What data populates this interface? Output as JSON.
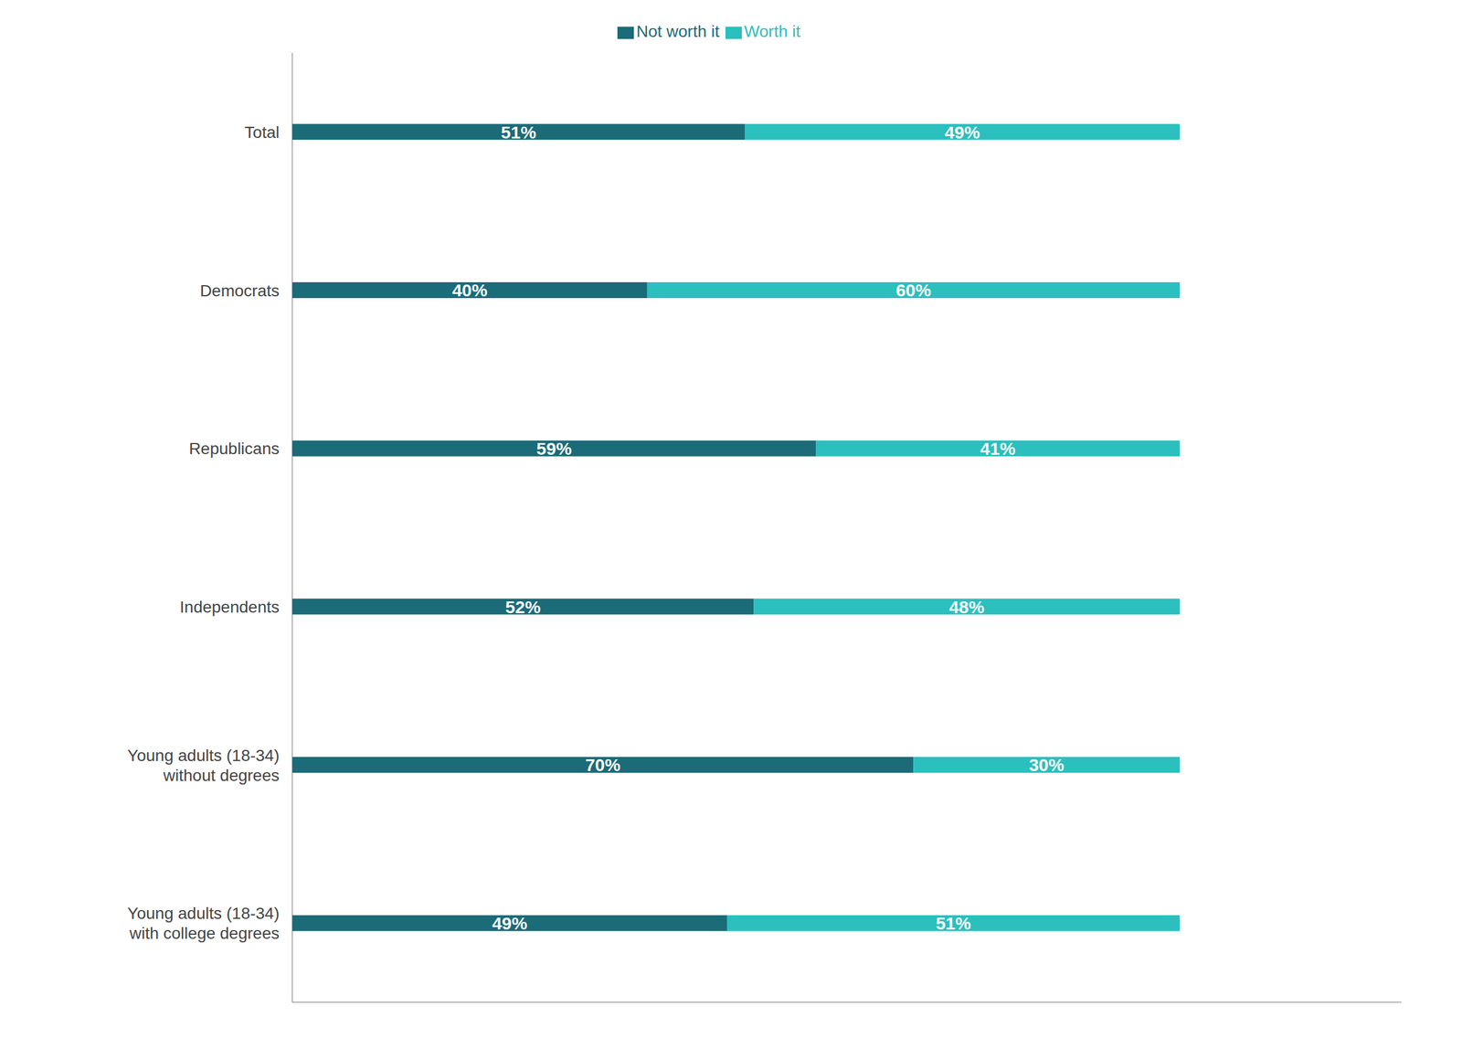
{
  "chart_data": {
    "type": "bar",
    "orientation": "horizontal",
    "stacked": true,
    "categories": [
      "Total",
      "Democrats",
      "Republicans",
      "Independents",
      "Young adults (18-34)\nwithout degrees",
      "Young adults (18-34)\nwith college degrees"
    ],
    "series": [
      {
        "name": "Not worth it",
        "color": "#1b6b78",
        "values": [
          51,
          40,
          59,
          52,
          70,
          49
        ],
        "value_labels": [
          "51%",
          "40%",
          "59%",
          "52%",
          "70%",
          "49%"
        ]
      },
      {
        "name": "Worth it",
        "color": "#2bbfbe",
        "values": [
          49,
          60,
          41,
          48,
          30,
          51
        ],
        "value_labels": [
          "49%",
          "60%",
          "41%",
          "48%",
          "30%",
          "51%"
        ]
      }
    ],
    "xlim": [
      0,
      125
    ],
    "data_labels": true,
    "tick_labels": "y",
    "legend": "top",
    "grid": false
  }
}
